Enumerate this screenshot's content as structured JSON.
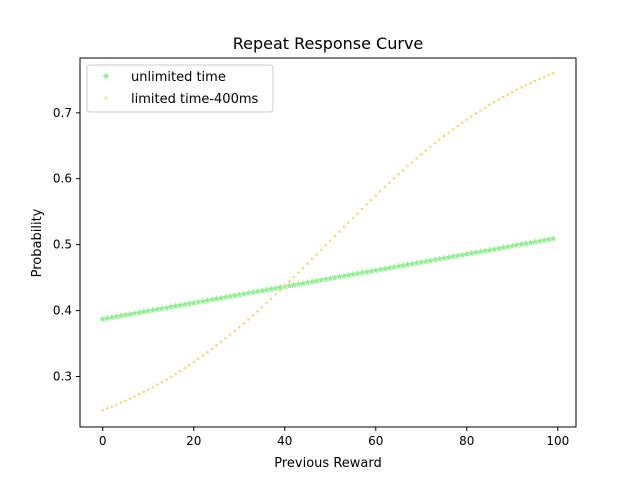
{
  "chart_data": {
    "type": "scatter",
    "title": "Repeat Response Curve",
    "xlabel": "Previous Reward",
    "ylabel": "Probability",
    "xlim": [
      -5,
      104
    ],
    "ylim": [
      0.2234,
      0.7831
    ],
    "xticks": [
      0,
      20,
      40,
      60,
      80,
      100
    ],
    "yticks": [
      0.3,
      0.4,
      0.5,
      0.6,
      0.7
    ],
    "xtick_labels": [
      "0",
      "20",
      "40",
      "60",
      "80",
      "100"
    ],
    "ytick_labels": [
      "0.3",
      "0.4",
      "0.5",
      "0.6",
      "0.7"
    ],
    "legend_position": "upper-left",
    "x_range": {
      "start": 0,
      "end": 99,
      "step": 1
    },
    "series": [
      {
        "name": "unlimited time",
        "marker": "star",
        "color": "#90ee90",
        "y_start": 0.387,
        "y_end": 0.509,
        "shape": "linear"
      },
      {
        "name": "limited time-400ms",
        "marker": "dot",
        "color": "#f0dc78",
        "y_start": 0.249,
        "y_end": 0.76,
        "shape": "logistic",
        "y_at_x50": 0.508,
        "logistic_slope": 0.0425
      }
    ]
  }
}
